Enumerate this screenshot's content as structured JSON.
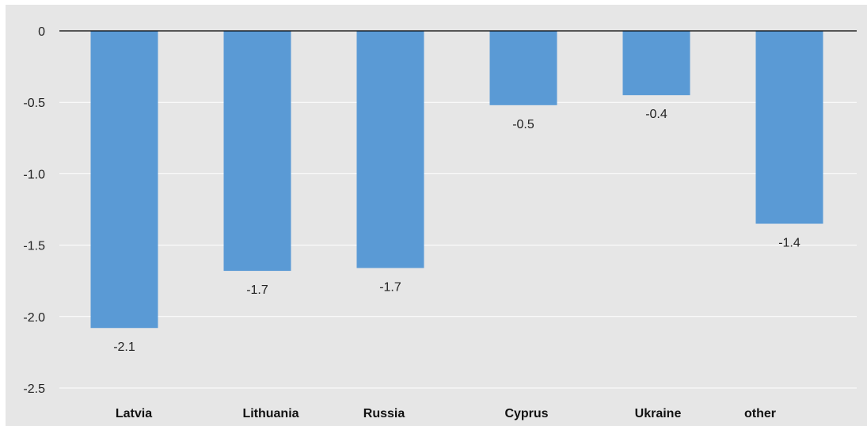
{
  "chart_data": {
    "type": "bar",
    "categories": [
      "Latvia",
      "Lithuania",
      "Russia",
      "Cyprus",
      "Ukraine",
      "other"
    ],
    "values": [
      -2.08,
      -1.68,
      -1.66,
      -0.52,
      -0.45,
      -1.35
    ],
    "data_labels": [
      "-2.1",
      "-1.7",
      "-1.7",
      "-0.5",
      "-0.4",
      "-1.4"
    ],
    "y_ticks": [
      0,
      -0.5,
      -1.0,
      -1.5,
      -2.0,
      -2.5
    ],
    "y_tick_labels": [
      "0",
      "-0.5",
      "-1.0",
      "-1.5",
      "-2.0",
      "-2.5"
    ],
    "ylim": [
      -2.5,
      0
    ],
    "title": "",
    "xlabel": "",
    "ylabel": "",
    "grid": true,
    "legend": "none",
    "colors": {
      "bar": "#5a9ad5",
      "plot_background": "#e6e6e6",
      "grid": "#ffffff",
      "zero_line": "#000000"
    }
  }
}
